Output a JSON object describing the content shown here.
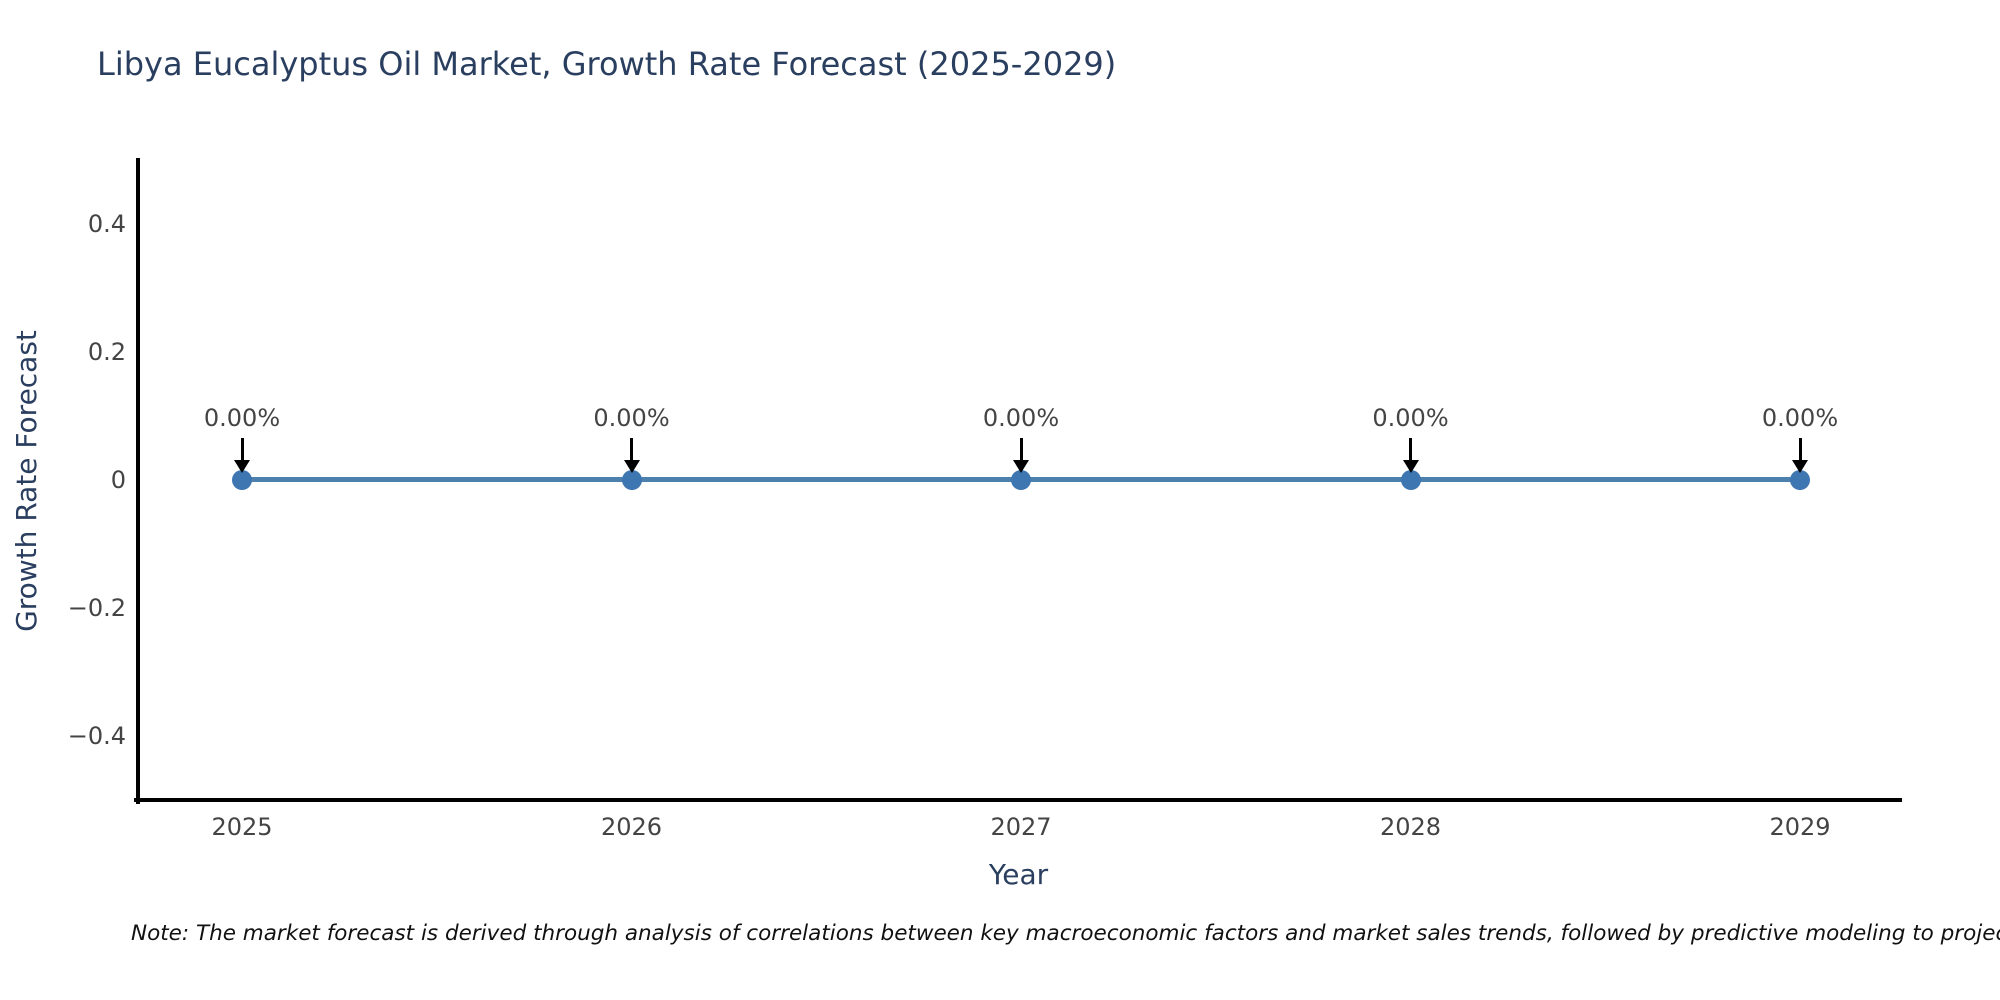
{
  "page": {
    "background": "#ffffff"
  },
  "note": {
    "text": "Note: The market forecast is derived through analysis of correlations between key macroeconomic factors and market sales trends, followed by predictive modeling to project future sa"
  },
  "chart_data": {
    "type": "line",
    "title": "Libya Eucalyptus Oil Market, Growth Rate Forecast (2025-2029)",
    "xlabel": "Year",
    "ylabel": "Growth Rate Forecast",
    "categories": [
      "2025",
      "2026",
      "2027",
      "2028",
      "2029"
    ],
    "series": [
      {
        "name": "Growth Rate Forecast",
        "values": [
          0,
          0,
          0,
          0,
          0
        ]
      }
    ],
    "point_labels": [
      "0.00%",
      "0.00%",
      "0.00%",
      "0.00%",
      "0.00%"
    ],
    "ylim": [
      -0.5,
      0.5
    ],
    "yticks": [
      {
        "value": 0.4,
        "label": "0.4"
      },
      {
        "value": 0.2,
        "label": "0.2"
      },
      {
        "value": 0,
        "label": "0"
      },
      {
        "value": -0.2,
        "label": "−0.2"
      },
      {
        "value": -0.4,
        "label": "−0.4"
      }
    ],
    "grid": false,
    "legend_position": "none",
    "marker_shape": "circle",
    "annotation_arrow_direction": "down",
    "colors": {
      "line": "#4D81AD",
      "marker": "#3D76B0",
      "axis": "#000000",
      "arrow": "#000000",
      "tick_text": "#444444",
      "title_text": "#2a3f5f",
      "note_text": "#111111"
    }
  }
}
